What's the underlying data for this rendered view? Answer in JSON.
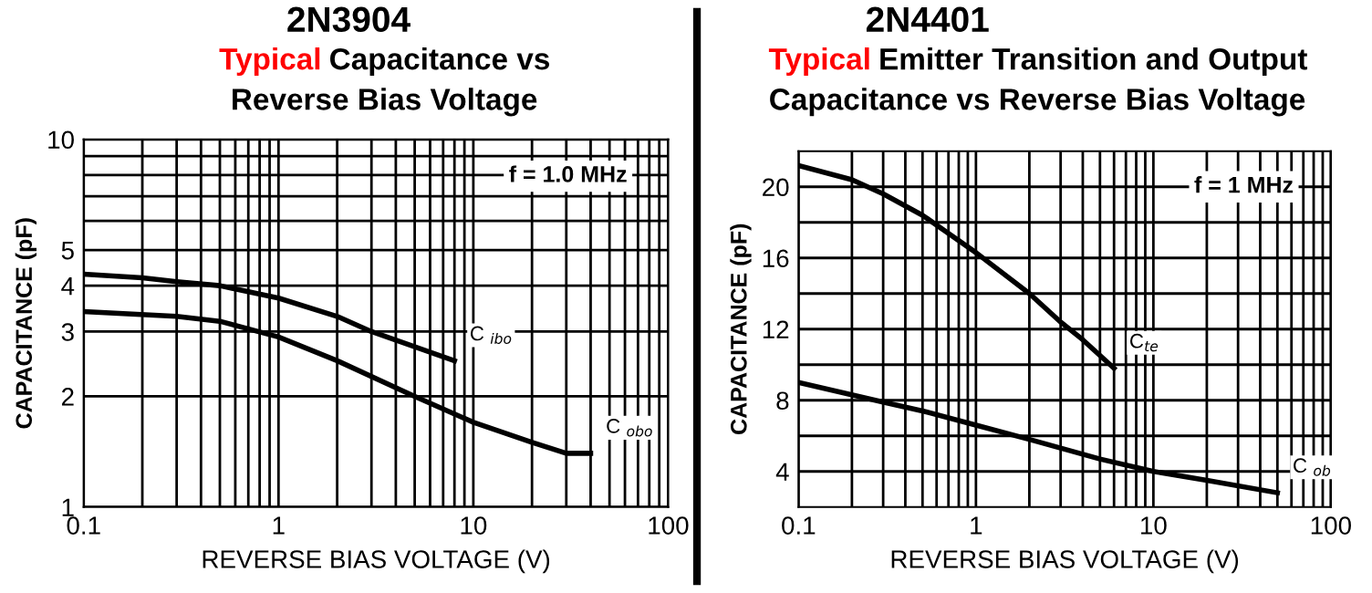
{
  "chart_data": [
    {
      "type": "line",
      "title": "2N3904",
      "subtitle": "Typical Capacitance vs\nReverse Bias Voltage",
      "xlabel": "REVERSE BIAS VOLTAGE (V)",
      "ylabel": "CAPACITANCE (pF)",
      "log": "xy",
      "grid": true,
      "legend": false,
      "marker": "none",
      "line_style": "solid",
      "xlim": [
        0.1,
        100
      ],
      "xticks": [
        0.1,
        1,
        10,
        100
      ],
      "ylim": [
        1,
        10
      ],
      "yticks": [
        1,
        2,
        3,
        4,
        5,
        {
          "value": 6,
          "label": null
        },
        {
          "value": 7,
          "label": null
        },
        {
          "value": 8,
          "label": null
        },
        {
          "value": 9,
          "label": null
        },
        10
      ],
      "series": [
        {
          "name": "C $_{ibo}$",
          "color": "#000000",
          "x": [
            0.1,
            0.2,
            0.3,
            0.5,
            1,
            2,
            3,
            8
          ],
          "values": [
            4.3,
            4.2,
            4.1,
            4.0,
            3.7,
            3.3,
            3.0,
            2.5
          ]
        },
        {
          "name": "C $_{obo}$",
          "color": "#000000",
          "x": [
            0.1,
            0.3,
            0.5,
            1,
            2,
            5,
            10,
            20,
            30,
            40
          ],
          "values": [
            3.4,
            3.3,
            3.2,
            2.9,
            2.5,
            2.0,
            1.7,
            1.5,
            1.4,
            1.4
          ]
        }
      ],
      "annotations": [
        "f = 1.0 MHz"
      ]
    },
    {
      "type": "line",
      "title": "2N4401",
      "subtitle": "Typical Emitter Transition and Output\nCapacitance vs Reverse Bias Voltage",
      "xlabel": "REVERSE BIAS VOLTAGE (V)",
      "ylabel": "CAPACITANCE (pF)",
      "log": "x",
      "grid": true,
      "legend": false,
      "marker": "none",
      "line_style": "solid",
      "xlim": [
        0.1,
        100
      ],
      "xticks": [
        0.1,
        1,
        10,
        100
      ],
      "ylim": [
        2,
        22
      ],
      "yticks": [
        4,
        {
          "value": 6,
          "label": null
        },
        8,
        {
          "value": 10,
          "label": null
        },
        12,
        {
          "value": 14,
          "label": null
        },
        16,
        {
          "value": 18,
          "label": null
        },
        20
      ],
      "series": [
        {
          "name": "C$_{te}$",
          "color": "#000000",
          "x": [
            0.1,
            0.2,
            0.3,
            0.5,
            1,
            2,
            3,
            4,
            6
          ],
          "values": [
            21.2,
            20.4,
            19.6,
            18.4,
            16.3,
            14.0,
            12.4,
            11.4,
            9.8
          ]
        },
        {
          "name": "C $_{ob}$",
          "color": "#000000",
          "x": [
            0.1,
            0.3,
            0.5,
            1,
            2,
            5,
            10,
            20,
            50
          ],
          "values": [
            9.0,
            7.9,
            7.4,
            6.6,
            5.8,
            4.7,
            4.0,
            3.5,
            2.8
          ]
        }
      ],
      "annotations": [
        "f = 1 MHz"
      ]
    }
  ]
}
